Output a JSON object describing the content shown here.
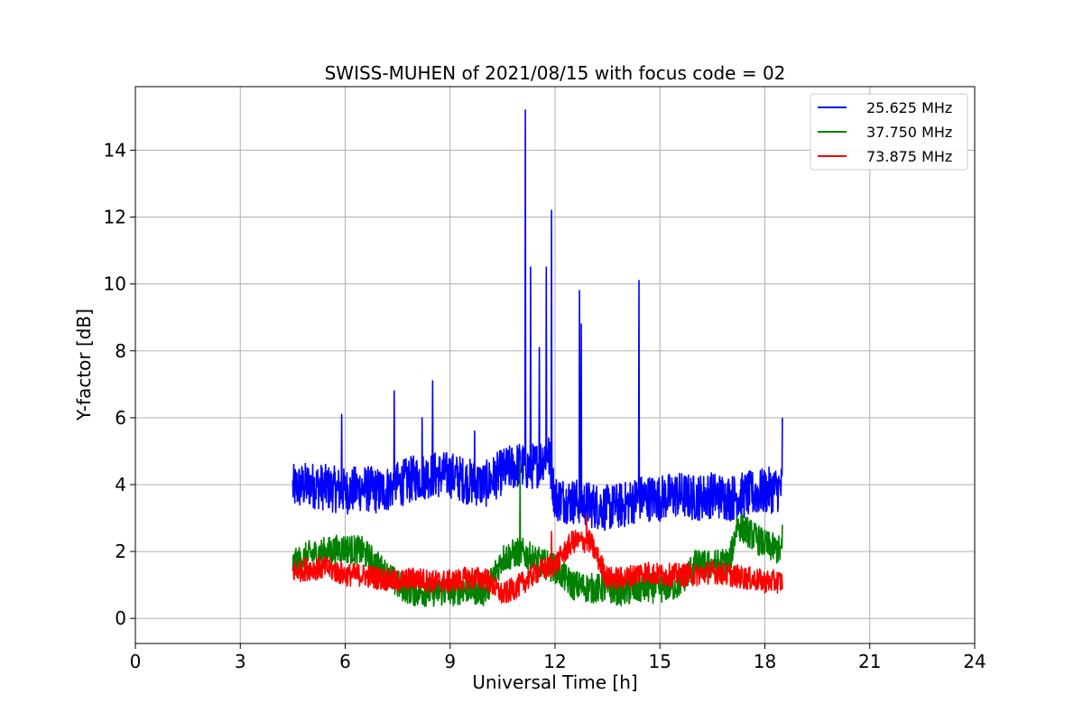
{
  "chart_data": {
    "type": "line",
    "title": "SWISS-MUHEN of 2021/08/15 with focus code = 02",
    "xlabel": "Universal Time [h]",
    "ylabel": "Y-factor [dB]",
    "xlim": [
      0,
      24
    ],
    "ylim": [
      -0.75,
      15.9
    ],
    "xticks": [
      0,
      3,
      6,
      9,
      12,
      15,
      18,
      21,
      24
    ],
    "yticks": [
      0,
      2,
      4,
      6,
      8,
      10,
      12,
      14
    ],
    "grid": true,
    "legend_position": "top-right",
    "series": [
      {
        "name": "25.625 MHz",
        "color": "#0000ff",
        "x": [
          4.5,
          5.0,
          5.5,
          6.0,
          6.5,
          7.0,
          7.5,
          8.0,
          8.5,
          9.0,
          9.5,
          10.0,
          10.5,
          11.0,
          11.2,
          11.5,
          11.8,
          12.0,
          12.5,
          12.7,
          13.0,
          13.5,
          14.0,
          14.4,
          15.0,
          15.5,
          16.0,
          16.5,
          17.0,
          17.5,
          18.0,
          18.5
        ],
        "y": [
          3.9,
          4.0,
          3.9,
          3.8,
          3.9,
          3.8,
          4.0,
          4.2,
          4.3,
          4.3,
          4.1,
          4.0,
          4.4,
          4.6,
          4.5,
          4.6,
          5.0,
          3.6,
          3.5,
          3.5,
          3.4,
          3.3,
          3.4,
          3.6,
          3.6,
          3.7,
          3.6,
          3.7,
          3.6,
          3.7,
          3.8,
          3.9
        ],
        "noise": 0.7,
        "peaks": [
          [
            5.9,
            6.1
          ],
          [
            7.4,
            6.8
          ],
          [
            8.2,
            6.0
          ],
          [
            8.5,
            7.1
          ],
          [
            9.7,
            5.6
          ],
          [
            11.15,
            15.2
          ],
          [
            11.3,
            10.5
          ],
          [
            11.55,
            8.1
          ],
          [
            11.75,
            10.5
          ],
          [
            11.9,
            12.2
          ],
          [
            12.7,
            9.8
          ],
          [
            12.75,
            8.8
          ],
          [
            14.4,
            10.1
          ],
          [
            18.5,
            6.0
          ]
        ]
      },
      {
        "name": "37.750 MHz",
        "color": "#008000",
        "x": [
          4.5,
          5.0,
          5.5,
          6.0,
          6.5,
          7.0,
          7.5,
          8.0,
          8.5,
          9.0,
          9.5,
          10.0,
          10.5,
          11.0,
          11.5,
          12.0,
          12.5,
          13.0,
          13.5,
          14.0,
          14.5,
          15.0,
          15.5,
          16.0,
          16.5,
          17.0,
          17.2,
          17.5,
          18.0,
          18.5
        ],
        "y": [
          1.6,
          1.9,
          2.0,
          2.1,
          2.0,
          1.5,
          1.0,
          0.8,
          0.8,
          0.8,
          0.9,
          0.8,
          1.8,
          2.0,
          1.7,
          1.5,
          1.0,
          0.9,
          0.9,
          0.8,
          0.9,
          0.9,
          1.0,
          1.6,
          1.6,
          1.7,
          2.8,
          2.6,
          2.2,
          2.0
        ],
        "noise": 0.45,
        "peaks": [
          [
            11.0,
            4.7
          ],
          [
            18.5,
            2.8
          ]
        ]
      },
      {
        "name": "73.875 MHz",
        "color": "#ff0000",
        "x": [
          4.5,
          5.0,
          5.5,
          6.0,
          6.5,
          7.0,
          7.5,
          8.0,
          8.5,
          9.0,
          9.5,
          10.0,
          10.5,
          11.0,
          11.5,
          12.0,
          12.5,
          13.0,
          13.5,
          14.0,
          14.5,
          15.0,
          15.5,
          16.0,
          16.5,
          17.0,
          17.5,
          18.0,
          18.5
        ],
        "y": [
          1.4,
          1.5,
          1.5,
          1.3,
          1.3,
          1.2,
          1.1,
          1.2,
          1.1,
          1.1,
          1.2,
          1.2,
          0.7,
          1.0,
          1.4,
          1.6,
          2.3,
          2.3,
          1.2,
          1.2,
          1.4,
          1.3,
          1.3,
          1.3,
          1.4,
          1.3,
          1.2,
          1.1,
          1.1
        ],
        "noise": 0.35,
        "peaks": [
          [
            11.9,
            2.6
          ],
          [
            12.9,
            3.1
          ]
        ]
      }
    ]
  }
}
